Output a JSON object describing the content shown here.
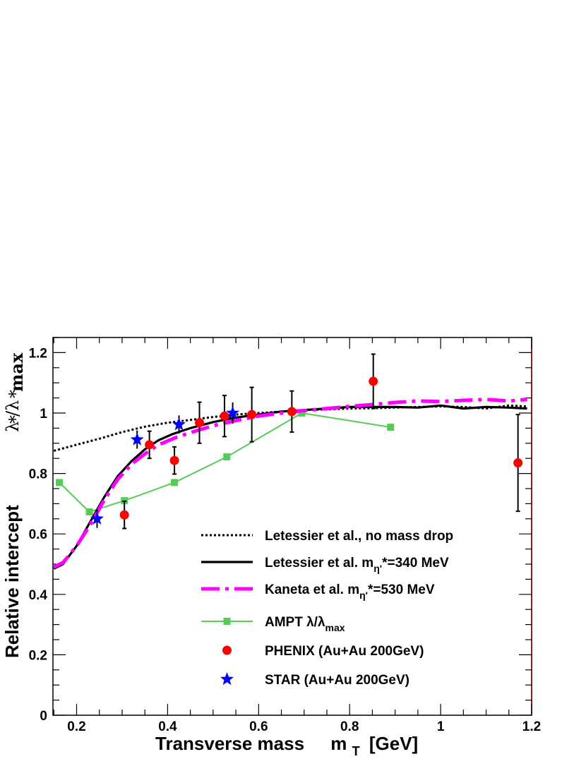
{
  "chart_data": {
    "type": "line",
    "xlabel": "Transverse mass",
    "xlabel_symbol": "m",
    "xlabel_sub": "T",
    "xlabel_unit": "[GeV]",
    "ylabel": "Relative intercept",
    "ylabel_frac": "λ*/λ*max",
    "xlim": [
      0.148,
      1.2
    ],
    "ylim": [
      0,
      1.25
    ],
    "x_ticks": [
      "0.2",
      "0.4",
      "0.6",
      "0.8",
      "1",
      "1.2"
    ],
    "y_ticks": [
      "0",
      "0.2",
      "0.4",
      "0.6",
      "0.8",
      "1",
      "1.2"
    ],
    "x_tick_values": [
      0.2,
      0.4,
      0.6,
      0.8,
      1.0,
      1.2
    ],
    "y_tick_values": [
      0,
      0.2,
      0.4,
      0.6,
      0.8,
      1.0,
      1.2
    ],
    "legend_position": "bottom-center",
    "series": [
      {
        "name": "Letessier et al., no mass drop",
        "style": "dotted",
        "color": "#000000",
        "x": [
          0.15,
          0.2,
          0.25,
          0.3,
          0.35,
          0.4,
          0.45,
          0.5,
          0.55,
          0.6,
          0.65,
          0.7,
          0.75,
          0.8,
          0.85,
          0.9,
          0.95,
          1.0,
          1.05,
          1.1,
          1.15,
          1.19
        ],
        "y": [
          0.875,
          0.895,
          0.915,
          0.937,
          0.955,
          0.968,
          0.977,
          0.987,
          0.995,
          1.0,
          1.005,
          1.01,
          1.012,
          1.015,
          1.016,
          1.018,
          1.02,
          1.022,
          1.02,
          1.015,
          1.025,
          1.022
        ]
      },
      {
        "name": "Letessier et al. mη'*=340 MeV",
        "style": "solid",
        "color": "#000000",
        "x": [
          0.15,
          0.17,
          0.2,
          0.23,
          0.26,
          0.29,
          0.32,
          0.35,
          0.38,
          0.41,
          0.45,
          0.5,
          0.55,
          0.6,
          0.65,
          0.7,
          0.75,
          0.8,
          0.85,
          0.9,
          0.95,
          1.0,
          1.05,
          1.1,
          1.15,
          1.19
        ],
        "y": [
          0.485,
          0.5,
          0.56,
          0.64,
          0.72,
          0.79,
          0.84,
          0.88,
          0.91,
          0.93,
          0.95,
          0.97,
          0.985,
          0.995,
          1.005,
          1.01,
          1.015,
          1.02,
          1.02,
          1.02,
          1.018,
          1.025,
          1.015,
          1.02,
          1.018,
          1.015
        ]
      },
      {
        "name": "Kaneta et al. mη'*=530 MeV",
        "style": "dashdot",
        "color": "#ff00ff",
        "x": [
          0.15,
          0.17,
          0.2,
          0.23,
          0.26,
          0.29,
          0.32,
          0.35,
          0.38,
          0.42,
          0.46,
          0.5,
          0.55,
          0.6,
          0.65,
          0.7,
          0.75,
          0.8,
          0.85,
          0.9,
          0.95,
          1.0,
          1.05,
          1.1,
          1.15,
          1.19
        ],
        "y": [
          0.49,
          0.505,
          0.56,
          0.63,
          0.71,
          0.78,
          0.83,
          0.865,
          0.895,
          0.92,
          0.94,
          0.958,
          0.975,
          0.99,
          1.0,
          1.008,
          1.015,
          1.022,
          1.028,
          1.035,
          1.04,
          1.038,
          1.042,
          1.045,
          1.04,
          1.045
        ]
      },
      {
        "name": "AMPT λ/λmax",
        "style": "line-marker",
        "color": "#55cc55",
        "x": [
          0.162,
          0.228,
          0.305,
          0.415,
          0.53,
          0.695,
          0.89
        ],
        "y": [
          0.77,
          0.673,
          0.71,
          0.77,
          0.855,
          1.0,
          0.953
        ]
      },
      {
        "name": "PHENIX (Au+Au 200GeV)",
        "style": "points-circle",
        "color": "#ff0000",
        "x": [
          0.305,
          0.36,
          0.415,
          0.47,
          0.525,
          0.585,
          0.673,
          0.852,
          1.17
        ],
        "y": [
          0.663,
          0.895,
          0.843,
          0.968,
          0.99,
          0.995,
          1.005,
          1.105,
          0.835
        ],
        "yerr": [
          0.045,
          0.045,
          0.045,
          0.068,
          0.068,
          0.09,
          0.068,
          0.09,
          0.16
        ]
      },
      {
        "name": "STAR (Au+Au 200GeV)",
        "style": "points-star",
        "color": "#0000ff",
        "x": [
          0.245,
          0.333,
          0.425,
          0.543
        ],
        "y": [
          0.65,
          0.912,
          0.962,
          1.0
        ],
        "yerr": [
          0.03,
          0.03,
          0.03,
          0.035
        ]
      }
    ]
  },
  "legend": {
    "items": [
      {
        "label": "Letessier et al., no mass drop"
      },
      {
        "label": "Letessier et al. m",
        "sub": "η'",
        "rest": "*=340 MeV"
      },
      {
        "label": "Kaneta et al. m",
        "sub": "η'",
        "rest": "*=530 MeV"
      },
      {
        "label": "AMPT λ/λ",
        "sub": "max",
        "rest": ""
      },
      {
        "label": "PHENIX (Au+Au 200GeV)"
      },
      {
        "label": "STAR (Au+Au 200GeV)"
      }
    ]
  }
}
